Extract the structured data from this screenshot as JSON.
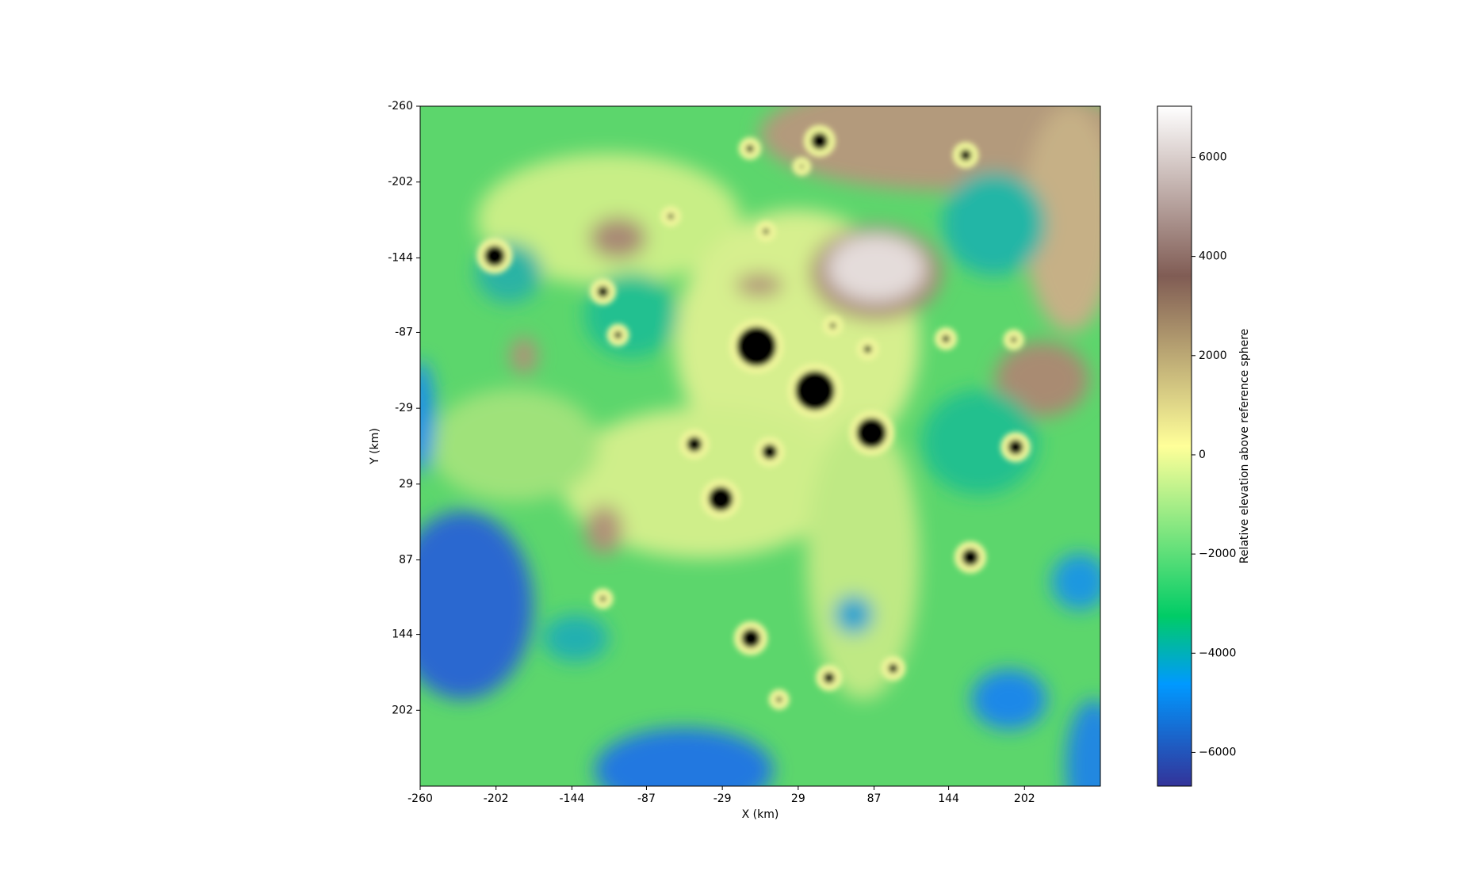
{
  "chart_data": {
    "type": "image",
    "xlabel": "X (km)",
    "ylabel": "Y (km)",
    "xlim": [
      -260,
      260
    ],
    "ylim": [
      260,
      -260
    ],
    "xticks": [
      -260,
      -202,
      -144,
      -87,
      -29,
      29,
      87,
      144,
      202
    ],
    "yticks": [
      -260,
      -202,
      -144,
      -87,
      -29,
      29,
      87,
      144,
      202
    ],
    "colorbar": {
      "label": "Relative elevation above reference sphere",
      "colormap": "terrain",
      "lim": [
        -6680,
        7030
      ],
      "ticks": [
        {
          "value": -6000,
          "label": "−6000"
        },
        {
          "value": -4000,
          "label": "−4000"
        },
        {
          "value": -2000,
          "label": "−2000"
        },
        0,
        2000,
        4000,
        6000
      ]
    }
  }
}
